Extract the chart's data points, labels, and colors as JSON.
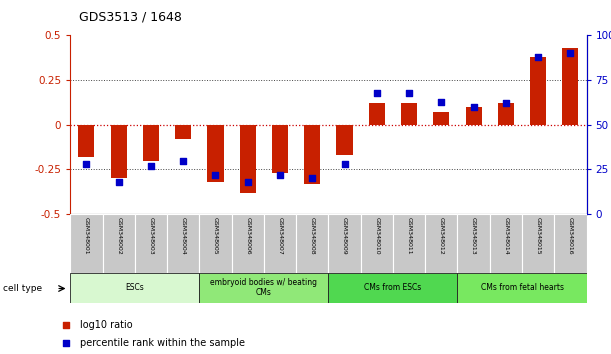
{
  "title": "GDS3513 / 1648",
  "samples": [
    "GSM348001",
    "GSM348002",
    "GSM348003",
    "GSM348004",
    "GSM348005",
    "GSM348006",
    "GSM348007",
    "GSM348008",
    "GSM348009",
    "GSM348010",
    "GSM348011",
    "GSM348012",
    "GSM348013",
    "GSM348014",
    "GSM348015",
    "GSM348016"
  ],
  "log10_ratio": [
    -0.18,
    -0.3,
    -0.2,
    -0.08,
    -0.32,
    -0.38,
    -0.27,
    -0.33,
    -0.17,
    0.12,
    0.12,
    0.07,
    0.1,
    0.12,
    0.38,
    0.43
  ],
  "percentile_rank": [
    28,
    18,
    27,
    30,
    22,
    18,
    22,
    20,
    28,
    68,
    68,
    63,
    60,
    62,
    88,
    90
  ],
  "ylim_left": [
    -0.5,
    0.5
  ],
  "ylim_right": [
    0,
    100
  ],
  "yticks_left": [
    -0.5,
    -0.25,
    0.0,
    0.25,
    0.5
  ],
  "yticks_right": [
    0,
    25,
    50,
    75,
    100
  ],
  "ytick_labels_right": [
    "0",
    "25",
    "50",
    "75",
    "100%"
  ],
  "cell_type_groups": [
    {
      "label": "ESCs",
      "start": 0,
      "end": 3,
      "color": "#d8f8d0"
    },
    {
      "label": "embryoid bodies w/ beating\nCMs",
      "start": 4,
      "end": 7,
      "color": "#90e878"
    },
    {
      "label": "CMs from ESCs",
      "start": 8,
      "end": 11,
      "color": "#50d850"
    },
    {
      "label": "CMs from fetal hearts",
      "start": 12,
      "end": 15,
      "color": "#78e860"
    }
  ],
  "bar_color_red": "#c82000",
  "dot_color_blue": "#0000c8",
  "bg_color_sample_labels": "#c8c8c8",
  "hline_red_color": "#cc0000",
  "hline_dotted_color": "#444444",
  "legend_red_label": "log10 ratio",
  "legend_blue_label": "percentile rank within the sample",
  "cell_type_label": "cell type"
}
